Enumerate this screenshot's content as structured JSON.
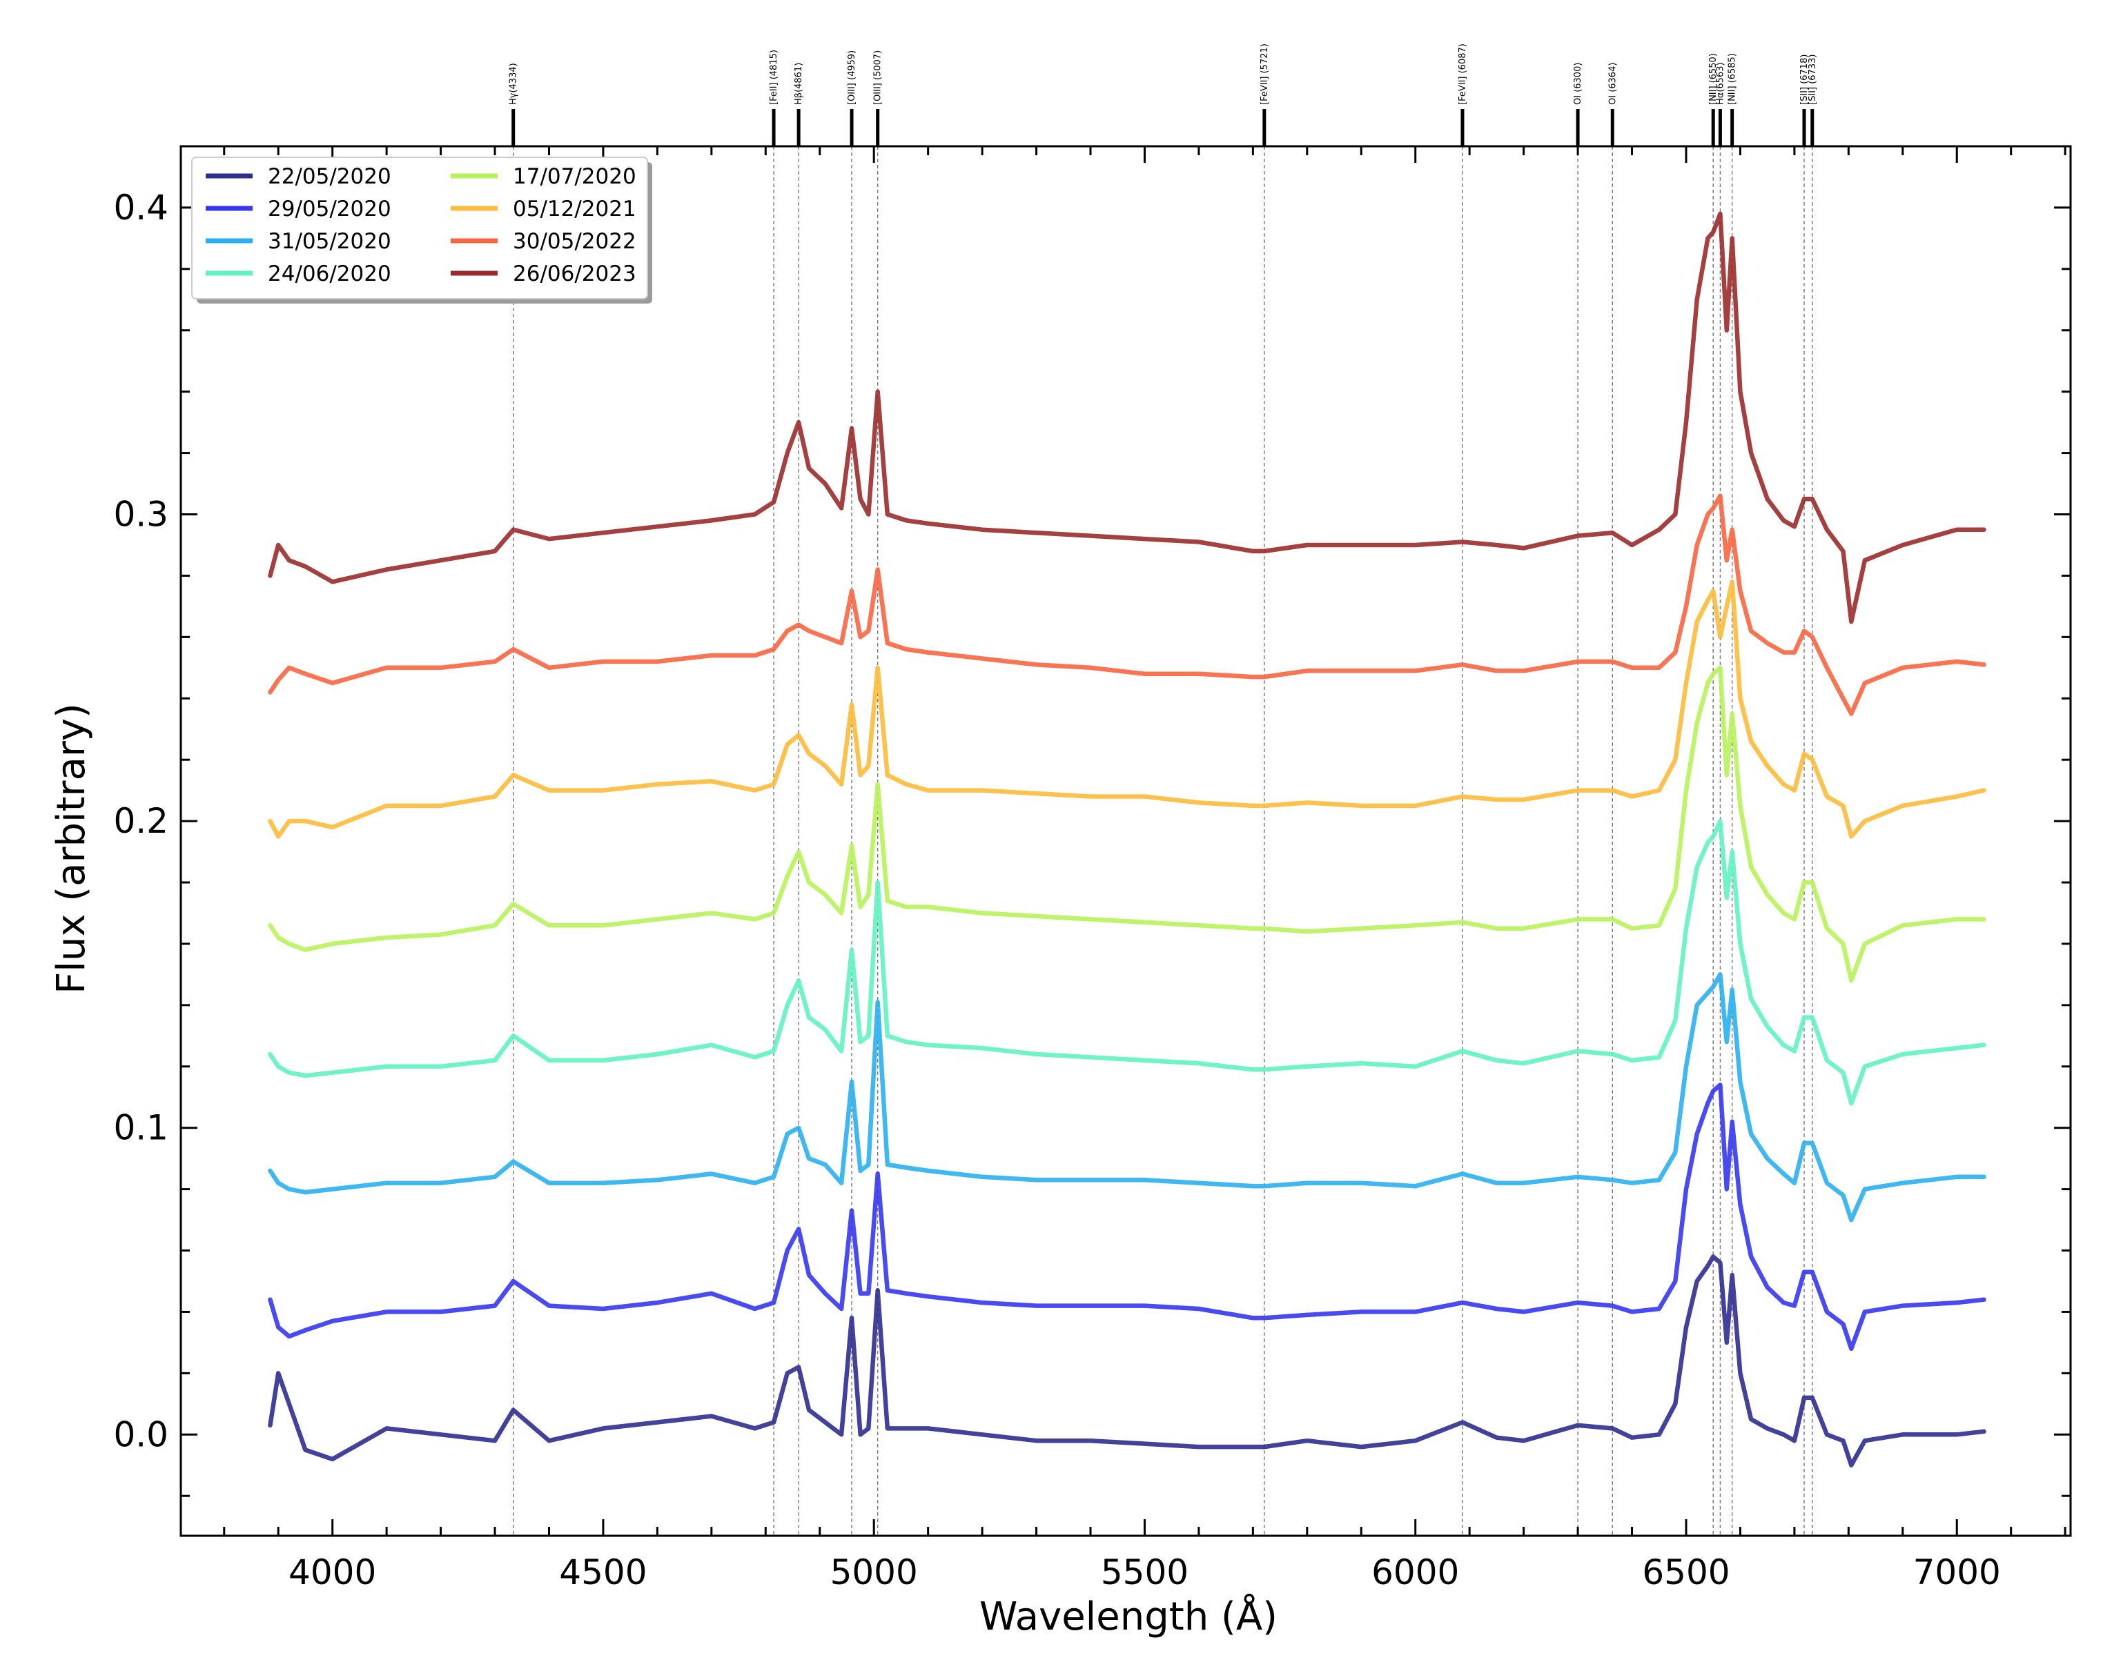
{
  "chart_data": {
    "type": "line",
    "xlabel": "Wavelength (Å)",
    "ylabel": "Flux (arbitrary)",
    "xlim": [
      3720,
      7210
    ],
    "ylim": [
      -0.033,
      0.42
    ],
    "x_ticks": [
      {
        "value": 4000,
        "label": "4000"
      },
      {
        "value": 4500,
        "label": "4500"
      },
      {
        "value": 5000,
        "label": "5000"
      },
      {
        "value": 5500,
        "label": "5500"
      },
      {
        "value": 6000,
        "label": "6000"
      },
      {
        "value": 6500,
        "label": "6500"
      },
      {
        "value": 7000,
        "label": "7000"
      }
    ],
    "y_ticks": [
      {
        "value": 0.0,
        "label": "0.0"
      },
      {
        "value": 0.1,
        "label": "0.1"
      },
      {
        "value": 0.2,
        "label": "0.2"
      },
      {
        "value": 0.3,
        "label": "0.3"
      },
      {
        "value": 0.4,
        "label": "0.4"
      }
    ],
    "emission_lines": [
      {
        "label": "Hγ(4334)",
        "wavelength": 4334
      },
      {
        "label": "[FeII] (4815)",
        "wavelength": 4815
      },
      {
        "label": "Hβ(4861)",
        "wavelength": 4861
      },
      {
        "label": "[OIII] (4959)",
        "wavelength": 4959
      },
      {
        "label": "[OIII] (5007)",
        "wavelength": 5007
      },
      {
        "label": "[FeVII] (5721)",
        "wavelength": 5721
      },
      {
        "label": "[FeVII] (6087)",
        "wavelength": 6087
      },
      {
        "label": "OI (6300)",
        "wavelength": 6300
      },
      {
        "label": "OI (6364)",
        "wavelength": 6364
      },
      {
        "label": "[NII] (6550)",
        "wavelength": 6550
      },
      {
        "label": "Hα(6563)",
        "wavelength": 6563
      },
      {
        "label": "[NII] (6585)",
        "wavelength": 6585
      },
      {
        "label": "[SII] (6718)",
        "wavelength": 6718
      },
      {
        "label": "[SII] (6733)",
        "wavelength": 6733
      }
    ],
    "x": [
      3885,
      3900,
      3920,
      3950,
      4000,
      4100,
      4200,
      4300,
      4334,
      4400,
      4500,
      4600,
      4700,
      4780,
      4815,
      4840,
      4861,
      4880,
      4910,
      4940,
      4959,
      4975,
      4990,
      5007,
      5025,
      5060,
      5100,
      5200,
      5300,
      5400,
      5500,
      5600,
      5700,
      5721,
      5800,
      5900,
      6000,
      6087,
      6150,
      6200,
      6300,
      6364,
      6400,
      6450,
      6480,
      6500,
      6520,
      6540,
      6550,
      6563,
      6575,
      6585,
      6600,
      6620,
      6650,
      6680,
      6700,
      6718,
      6733,
      6760,
      6790,
      6805,
      6830,
      6900,
      7000,
      7050
    ],
    "series": [
      {
        "name": "22/05/2020",
        "color": "#2e2e8f",
        "values": [
          0.003,
          0.02,
          0.01,
          -0.005,
          -0.008,
          0.002,
          0.0,
          -0.002,
          0.008,
          -0.002,
          0.002,
          0.004,
          0.006,
          0.002,
          0.004,
          0.02,
          0.022,
          0.008,
          0.004,
          0.0,
          0.038,
          0.0,
          0.002,
          0.047,
          0.002,
          0.002,
          0.002,
          0.0,
          -0.002,
          -0.002,
          -0.003,
          -0.004,
          -0.004,
          -0.004,
          -0.002,
          -0.004,
          -0.002,
          0.004,
          -0.001,
          -0.002,
          0.003,
          0.002,
          -0.001,
          0.0,
          0.01,
          0.035,
          0.05,
          0.055,
          0.058,
          0.056,
          0.03,
          0.052,
          0.02,
          0.005,
          0.002,
          0.0,
          -0.002,
          0.012,
          0.012,
          0.0,
          -0.002,
          -0.01,
          -0.002,
          0.0,
          0.0,
          0.001
        ]
      },
      {
        "name": "29/05/2020",
        "color": "#3636f2",
        "values": [
          0.044,
          0.035,
          0.032,
          0.034,
          0.037,
          0.04,
          0.04,
          0.042,
          0.05,
          0.042,
          0.041,
          0.043,
          0.046,
          0.041,
          0.043,
          0.06,
          0.067,
          0.052,
          0.046,
          0.041,
          0.073,
          0.046,
          0.046,
          0.085,
          0.047,
          0.046,
          0.045,
          0.043,
          0.042,
          0.042,
          0.042,
          0.041,
          0.038,
          0.038,
          0.039,
          0.04,
          0.04,
          0.043,
          0.041,
          0.04,
          0.043,
          0.042,
          0.04,
          0.041,
          0.05,
          0.08,
          0.098,
          0.108,
          0.112,
          0.114,
          0.08,
          0.102,
          0.075,
          0.058,
          0.048,
          0.043,
          0.042,
          0.053,
          0.053,
          0.04,
          0.036,
          0.028,
          0.04,
          0.042,
          0.043,
          0.044
        ]
      },
      {
        "name": "31/05/2020",
        "color": "#2ab0f0",
        "values": [
          0.086,
          0.082,
          0.08,
          0.079,
          0.08,
          0.082,
          0.082,
          0.084,
          0.089,
          0.082,
          0.082,
          0.083,
          0.085,
          0.082,
          0.084,
          0.098,
          0.1,
          0.09,
          0.088,
          0.082,
          0.115,
          0.086,
          0.088,
          0.141,
          0.088,
          0.087,
          0.086,
          0.084,
          0.083,
          0.083,
          0.083,
          0.082,
          0.081,
          0.081,
          0.082,
          0.082,
          0.081,
          0.085,
          0.082,
          0.082,
          0.084,
          0.083,
          0.082,
          0.083,
          0.092,
          0.12,
          0.14,
          0.144,
          0.146,
          0.15,
          0.128,
          0.145,
          0.115,
          0.098,
          0.09,
          0.085,
          0.082,
          0.095,
          0.095,
          0.082,
          0.078,
          0.07,
          0.08,
          0.082,
          0.084,
          0.084
        ]
      },
      {
        "name": "24/06/2020",
        "color": "#60f2c0",
        "values": [
          0.124,
          0.12,
          0.118,
          0.117,
          0.118,
          0.12,
          0.12,
          0.122,
          0.13,
          0.122,
          0.122,
          0.124,
          0.127,
          0.123,
          0.125,
          0.14,
          0.148,
          0.136,
          0.132,
          0.125,
          0.158,
          0.128,
          0.13,
          0.18,
          0.13,
          0.128,
          0.127,
          0.126,
          0.124,
          0.123,
          0.122,
          0.121,
          0.119,
          0.119,
          0.12,
          0.121,
          0.12,
          0.125,
          0.122,
          0.121,
          0.125,
          0.124,
          0.122,
          0.123,
          0.135,
          0.165,
          0.185,
          0.193,
          0.195,
          0.2,
          0.175,
          0.19,
          0.16,
          0.142,
          0.133,
          0.127,
          0.125,
          0.136,
          0.136,
          0.122,
          0.118,
          0.108,
          0.12,
          0.124,
          0.126,
          0.127
        ]
      },
      {
        "name": "17/07/2020",
        "color": "#b8f25a",
        "values": [
          0.166,
          0.162,
          0.16,
          0.158,
          0.16,
          0.162,
          0.163,
          0.166,
          0.173,
          0.166,
          0.166,
          0.168,
          0.17,
          0.168,
          0.17,
          0.182,
          0.19,
          0.18,
          0.176,
          0.17,
          0.192,
          0.172,
          0.176,
          0.212,
          0.174,
          0.172,
          0.172,
          0.17,
          0.169,
          0.168,
          0.167,
          0.166,
          0.165,
          0.165,
          0.164,
          0.165,
          0.166,
          0.167,
          0.165,
          0.165,
          0.168,
          0.168,
          0.165,
          0.166,
          0.178,
          0.21,
          0.232,
          0.245,
          0.248,
          0.25,
          0.215,
          0.235,
          0.205,
          0.185,
          0.176,
          0.17,
          0.168,
          0.18,
          0.18,
          0.165,
          0.16,
          0.148,
          0.16,
          0.166,
          0.168,
          0.168
        ]
      },
      {
        "name": "05/12/2021",
        "color": "#fdbb3a",
        "values": [
          0.2,
          0.195,
          0.2,
          0.2,
          0.198,
          0.205,
          0.205,
          0.208,
          0.215,
          0.21,
          0.21,
          0.212,
          0.213,
          0.21,
          0.212,
          0.225,
          0.228,
          0.222,
          0.218,
          0.212,
          0.238,
          0.215,
          0.218,
          0.25,
          0.215,
          0.212,
          0.21,
          0.21,
          0.209,
          0.208,
          0.208,
          0.206,
          0.205,
          0.205,
          0.206,
          0.205,
          0.205,
          0.208,
          0.207,
          0.207,
          0.21,
          0.21,
          0.208,
          0.21,
          0.22,
          0.245,
          0.265,
          0.272,
          0.275,
          0.26,
          0.27,
          0.278,
          0.24,
          0.226,
          0.218,
          0.212,
          0.21,
          0.222,
          0.22,
          0.208,
          0.205,
          0.195,
          0.2,
          0.205,
          0.208,
          0.21
        ]
      },
      {
        "name": "30/05/2022",
        "color": "#f76540",
        "values": [
          0.242,
          0.246,
          0.25,
          0.248,
          0.245,
          0.25,
          0.25,
          0.252,
          0.256,
          0.25,
          0.252,
          0.252,
          0.254,
          0.254,
          0.256,
          0.262,
          0.264,
          0.262,
          0.26,
          0.258,
          0.275,
          0.26,
          0.262,
          0.282,
          0.258,
          0.256,
          0.255,
          0.253,
          0.251,
          0.25,
          0.248,
          0.248,
          0.247,
          0.247,
          0.249,
          0.249,
          0.249,
          0.251,
          0.249,
          0.249,
          0.252,
          0.252,
          0.25,
          0.25,
          0.255,
          0.27,
          0.29,
          0.3,
          0.302,
          0.306,
          0.285,
          0.295,
          0.275,
          0.262,
          0.258,
          0.255,
          0.255,
          0.262,
          0.26,
          0.25,
          0.24,
          0.235,
          0.245,
          0.25,
          0.252,
          0.251
        ]
      },
      {
        "name": "26/06/2023",
        "color": "#9b2b2b",
        "values": [
          0.28,
          0.29,
          0.285,
          0.283,
          0.278,
          0.282,
          0.285,
          0.288,
          0.295,
          0.292,
          0.294,
          0.296,
          0.298,
          0.3,
          0.304,
          0.32,
          0.33,
          0.315,
          0.31,
          0.302,
          0.328,
          0.305,
          0.3,
          0.34,
          0.3,
          0.298,
          0.297,
          0.295,
          0.294,
          0.293,
          0.292,
          0.291,
          0.288,
          0.288,
          0.29,
          0.29,
          0.29,
          0.291,
          0.29,
          0.289,
          0.293,
          0.294,
          0.29,
          0.295,
          0.3,
          0.33,
          0.37,
          0.39,
          0.392,
          0.398,
          0.36,
          0.39,
          0.34,
          0.32,
          0.305,
          0.298,
          0.296,
          0.305,
          0.305,
          0.295,
          0.288,
          0.265,
          0.285,
          0.29,
          0.295,
          0.295
        ]
      }
    ]
  }
}
